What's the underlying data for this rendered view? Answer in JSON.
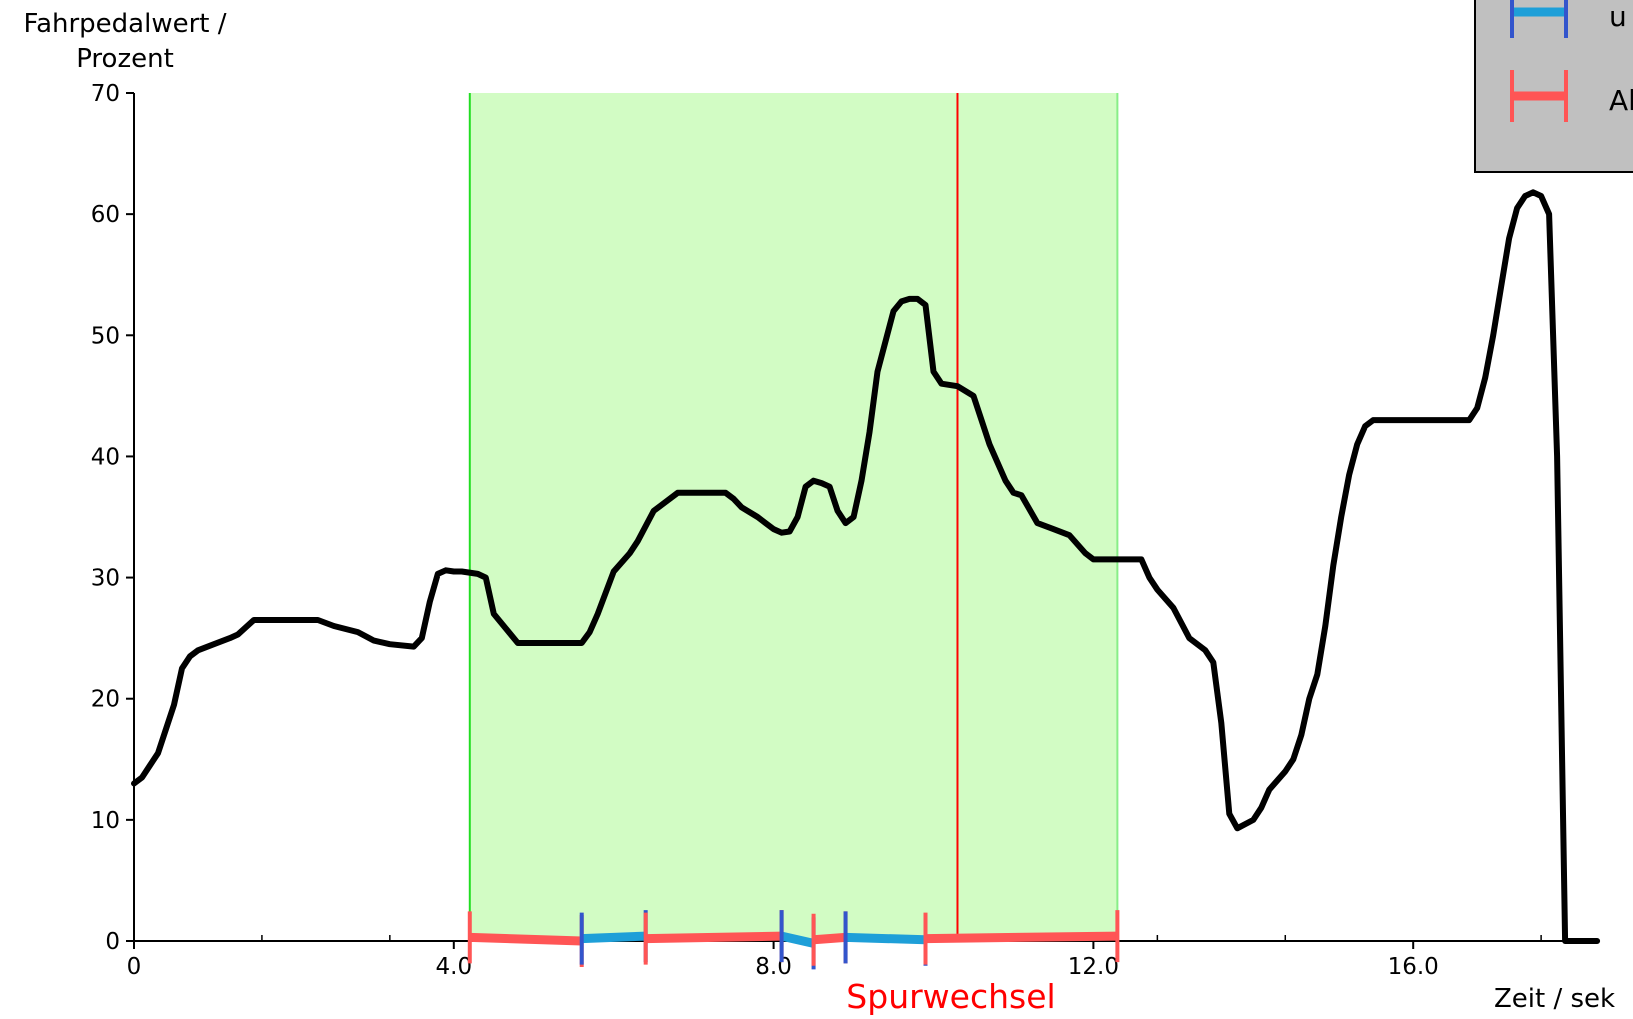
{
  "chart_data": {
    "type": "line",
    "ylabel_line1": "Fahrpedalwert /",
    "ylabel_line2": "Prozent",
    "xlabel": "Zeit / sek",
    "xlim": [
      0,
      18.4
    ],
    "ylim": [
      0,
      70
    ],
    "x_ticks": [
      0,
      4.0,
      8.0,
      12.0,
      16.0
    ],
    "x_tick_labels": [
      "0",
      "4.0",
      "8.0",
      "12.0",
      "16.0"
    ],
    "y_ticks": [
      0,
      10,
      20,
      30,
      40,
      50,
      60,
      70
    ],
    "y_tick_labels": [
      "0",
      "10",
      "20",
      "30",
      "40",
      "50",
      "60",
      "70"
    ],
    "highlight_region": {
      "x_start": 4.2,
      "x_end": 12.3,
      "color": "#d2fcc4",
      "edge_color": "#22dd22"
    },
    "event_marker": {
      "x": 10.3,
      "label": "Spurwechsel",
      "color": "#ff0000"
    },
    "legend": {
      "placement": "top-right",
      "entries": [
        {
          "label": "u",
          "color": "#1e9fd8",
          "tick_color": "#3355cc"
        },
        {
          "label": "Al",
          "color": "#ff5555",
          "tick_color": "#ff5555"
        }
      ]
    },
    "bottom_segments": [
      {
        "x0": 4.2,
        "x1": 5.6,
        "y0": 0.3,
        "y1": 0.0,
        "color": "#ff5555",
        "tick_color": "#ff5555"
      },
      {
        "x0": 5.6,
        "x1": 6.4,
        "y0": 0.2,
        "y1": 0.4,
        "color": "#1e9fd8",
        "tick_color": "#3355cc"
      },
      {
        "x0": 6.4,
        "x1": 8.1,
        "y0": 0.2,
        "y1": 0.4,
        "color": "#ff5555",
        "tick_color": "#ff5555"
      },
      {
        "x0": 8.1,
        "x1": 8.5,
        "y0": 0.4,
        "y1": -0.2,
        "color": "#1e9fd8",
        "tick_color": "#3355cc"
      },
      {
        "x0": 8.5,
        "x1": 8.9,
        "y0": 0.1,
        "y1": 0.3,
        "color": "#ff5555",
        "tick_color": "#ff5555"
      },
      {
        "x0": 8.9,
        "x1": 9.9,
        "y0": 0.3,
        "y1": 0.1,
        "color": "#1e9fd8",
        "tick_color": "#3355cc"
      },
      {
        "x0": 9.9,
        "x1": 12.3,
        "y0": 0.2,
        "y1": 0.4,
        "color": "#ff5555",
        "tick_color": "#ff5555"
      }
    ],
    "series": [
      {
        "color": "#000000",
        "x": [
          0,
          0.1,
          0.2,
          0.3,
          0.4,
          0.5,
          0.6,
          0.7,
          0.8,
          1.0,
          1.2,
          1.3,
          1.5,
          1.7,
          2.0,
          2.3,
          2.5,
          2.8,
          3.0,
          3.2,
          3.5,
          3.6,
          3.7,
          3.8,
          3.9,
          4.0,
          4.1,
          4.3,
          4.4,
          4.5,
          4.8,
          5.1,
          5.4,
          5.5,
          5.6,
          5.7,
          5.8,
          6.0,
          6.2,
          6.3,
          6.5,
          6.6,
          6.8,
          7.0,
          7.2,
          7.4,
          7.5,
          7.6,
          7.8,
          7.9,
          8.0,
          8.1,
          8.2,
          8.3,
          8.4,
          8.5,
          8.6,
          8.7,
          8.8,
          8.9,
          9.0,
          9.1,
          9.2,
          9.3,
          9.5,
          9.6,
          9.7,
          9.8,
          9.9,
          10.0,
          10.1,
          10.3,
          10.5,
          10.6,
          10.7,
          10.9,
          11.0,
          11.1,
          11.3,
          11.5,
          11.7,
          11.9,
          12.0,
          12.2,
          12.4,
          12.6,
          12.7,
          12.8,
          13.0,
          13.2,
          13.4,
          13.5,
          13.6,
          13.7,
          13.8,
          14.0,
          14.1,
          14.2,
          14.4,
          14.5,
          14.6,
          14.7,
          14.8,
          14.9,
          15.0,
          15.1,
          15.2,
          15.3,
          15.4,
          15.5,
          15.7,
          15.9,
          16.1,
          16.3,
          16.5,
          16.7,
          16.8,
          16.9,
          17.0,
          17.1,
          17.2,
          17.3,
          17.4,
          17.5,
          17.6,
          17.7,
          17.8,
          17.9,
          18.0,
          18.3
        ],
        "y": [
          13.0,
          13.5,
          14.5,
          15.5,
          17.5,
          19.5,
          22.5,
          23.5,
          24.0,
          24.5,
          25.0,
          25.3,
          26.5,
          26.5,
          26.5,
          26.5,
          26.0,
          25.5,
          24.8,
          24.5,
          24.3,
          25.0,
          28.0,
          30.3,
          30.6,
          30.5,
          30.5,
          30.3,
          30.0,
          27.0,
          24.6,
          24.6,
          24.6,
          24.6,
          24.6,
          25.5,
          27.0,
          30.5,
          32.0,
          33.0,
          35.5,
          36.0,
          37.0,
          37.0,
          37.0,
          37.0,
          36.5,
          35.8,
          35.0,
          34.5,
          34.0,
          33.7,
          33.8,
          35.0,
          37.5,
          38.0,
          37.8,
          37.5,
          35.5,
          34.5,
          35.0,
          38.0,
          42.0,
          47.0,
          52.0,
          52.8,
          53.0,
          53.0,
          52.5,
          47.0,
          46.0,
          45.8,
          45.0,
          43.0,
          41.0,
          38.0,
          37.0,
          36.8,
          34.5,
          34.0,
          33.5,
          32.0,
          31.5,
          31.5,
          31.5,
          31.5,
          30.0,
          29.0,
          27.5,
          25.0,
          24.0,
          23.0,
          18.0,
          10.5,
          9.3,
          10.0,
          11.0,
          12.5,
          14.0,
          15.0,
          17.0,
          20.0,
          22.0,
          26.0,
          31.0,
          35.0,
          38.5,
          41.0,
          42.5,
          43.0,
          43.0,
          43.0,
          43.0,
          43.0,
          43.0,
          43.0,
          44.0,
          46.5,
          50.0,
          54.0,
          58.0,
          60.5,
          61.5,
          61.8,
          61.5,
          60.0,
          40.0,
          0.0,
          0.0,
          0.0
        ]
      }
    ]
  }
}
